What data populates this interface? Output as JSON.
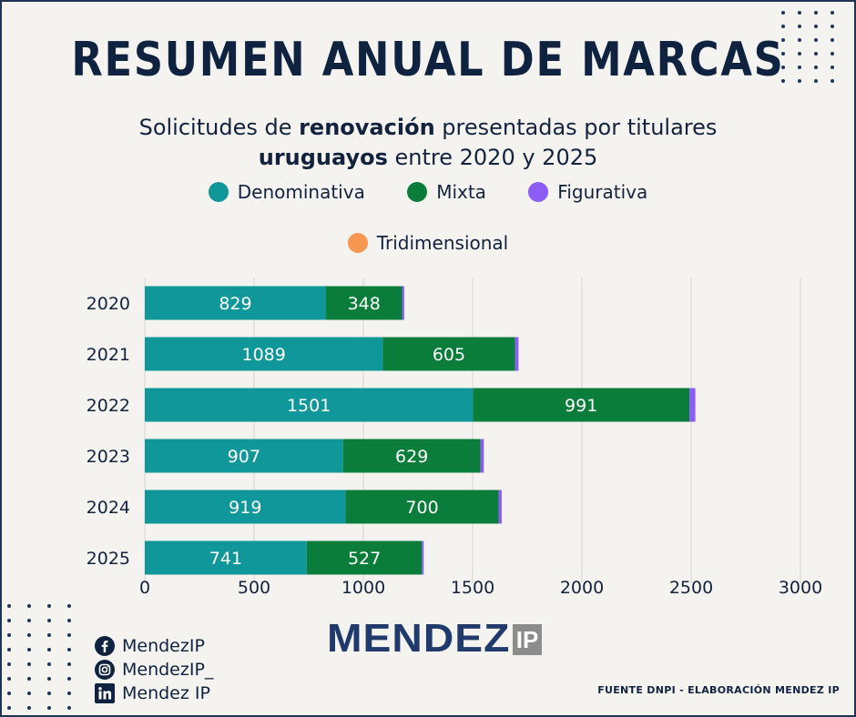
{
  "header": {
    "title": "RESUMEN ANUAL DE MARCAS",
    "subtitle_parts": [
      "Solicitudes de ",
      "renovación",
      " presentadas por titulares",
      "uruguayos",
      " entre 2020 y 2025"
    ]
  },
  "chart_data": {
    "type": "bar",
    "orientation": "horizontal",
    "stacked": true,
    "categories": [
      "2020",
      "2021",
      "2022",
      "2023",
      "2024",
      "2025"
    ],
    "series": [
      {
        "name": "Denominativa",
        "color": "#10979a",
        "values": [
          829,
          1089,
          1501,
          907,
          919,
          741
        ]
      },
      {
        "name": "Mixta",
        "color": "#0a7d3b",
        "values": [
          348,
          605,
          991,
          629,
          700,
          527
        ]
      },
      {
        "name": "Figurativa",
        "color": "#8b5cf6",
        "values": [
          10,
          16,
          27,
          15,
          14,
          8
        ]
      },
      {
        "name": "Tridimensional",
        "color": "#f79752",
        "values": [
          0,
          0,
          0,
          0,
          0,
          0
        ]
      }
    ],
    "data_labels_series": [
      "Denominativa",
      "Mixta"
    ],
    "x_ticks": [
      "0",
      "500",
      "1000",
      "1500",
      "2000",
      "2500",
      "3000"
    ],
    "xlim": [
      0,
      3000
    ],
    "grid": "vertical",
    "legend_placement": "top"
  },
  "social": {
    "facebook": "MendezIP",
    "instagram": "MendezIP_",
    "linkedin": "Mendez IP"
  },
  "icons": [
    "facebook-icon",
    "instagram-icon",
    "linkedin-icon"
  ],
  "logo": {
    "main": "MENDEZ",
    "badge": "IP"
  },
  "footer": {
    "source": "FUENTE DNPI - ELABORACIÓN MENDEZ IP"
  }
}
